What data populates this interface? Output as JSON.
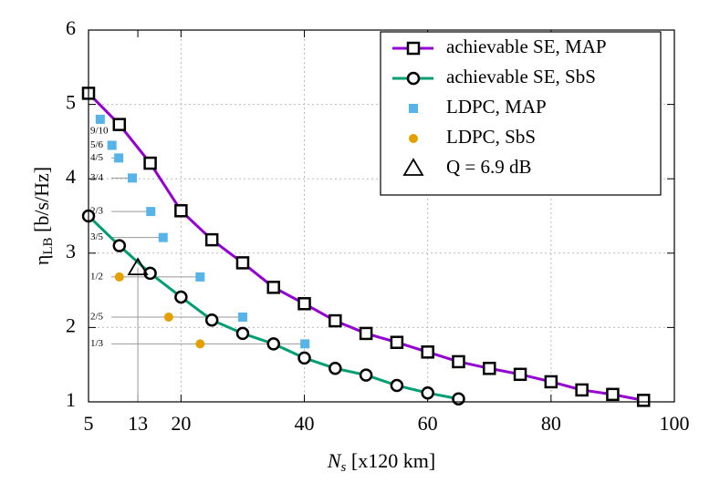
{
  "chart_data": {
    "type": "line",
    "x_label": {
      "main": "N",
      "subscript": "s",
      "suffix": " [x120 km]"
    },
    "y_label": {
      "main": "η",
      "subscript": "LB",
      "suffix": " [b/s/Hz]"
    },
    "xlim": [
      5,
      100
    ],
    "ylim": [
      1,
      6
    ],
    "xticks": [
      5,
      13,
      20,
      40,
      60,
      80,
      100
    ],
    "yticks": [
      1,
      2,
      3,
      4,
      5,
      6
    ],
    "grid": true,
    "legend": "upper right",
    "series": [
      {
        "name": "achievable SE, MAP",
        "color": "#9400d3",
        "marker": "open-square",
        "line": true,
        "x": [
          5,
          10,
          15,
          20,
          25,
          30,
          35,
          40,
          45,
          50,
          55,
          60,
          65,
          70,
          75,
          80,
          85,
          90,
          95
        ],
        "values": [
          5.15,
          4.73,
          4.21,
          3.57,
          3.18,
          2.87,
          2.54,
          2.32,
          2.09,
          1.92,
          1.8,
          1.67,
          1.54,
          1.45,
          1.37,
          1.27,
          1.16,
          1.1,
          1.02
        ]
      },
      {
        "name": "achievable SE, SbS",
        "color": "#009e73",
        "marker": "open-circle",
        "line": true,
        "x": [
          5,
          10,
          15,
          20,
          25,
          30,
          35,
          40,
          45,
          50,
          55,
          60,
          65
        ],
        "values": [
          3.5,
          3.1,
          2.73,
          2.41,
          2.1,
          1.92,
          1.78,
          1.59,
          1.45,
          1.36,
          1.22,
          1.12,
          1.04
        ]
      },
      {
        "name": "LDPC, MAP",
        "color": "#56b4e9",
        "marker": "square",
        "line": false,
        "x": [
          6.9,
          8.8,
          9.9,
          12.1,
          15.1,
          17.1,
          23.1,
          30,
          40.1
        ],
        "values": [
          4.8,
          4.45,
          4.28,
          4.01,
          3.56,
          3.21,
          2.68,
          2.14,
          1.78
        ],
        "point_labels": [
          "9/10",
          "5/6",
          "4/5",
          "3/4",
          "2/3",
          "3/5",
          "1/2",
          "2/5",
          "1/3"
        ]
      },
      {
        "name": "LDPC, SbS",
        "color": "#e69f00",
        "marker": "circle",
        "line": false,
        "x": [
          10,
          18,
          23.1
        ],
        "values": [
          2.68,
          2.14,
          1.78
        ]
      },
      {
        "name": "Q = 6.9 dB",
        "color": "#000000",
        "marker": "open-triangle",
        "line": false,
        "drop_line": true,
        "x": [
          13
        ],
        "values": [
          2.8
        ]
      }
    ]
  }
}
